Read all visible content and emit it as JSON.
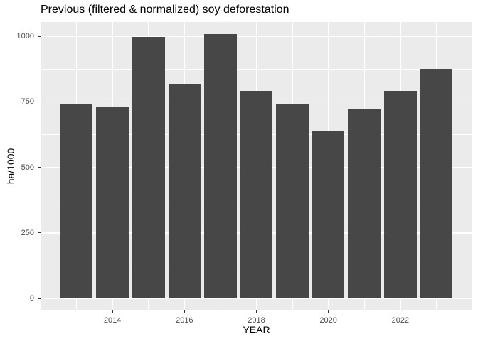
{
  "chart_data": {
    "type": "bar",
    "title": "Previous (filtered & normalized) soy deforestation",
    "xlabel": "YEAR",
    "ylabel": "ha/1000",
    "categories": [
      2013,
      2014,
      2015,
      2016,
      2017,
      2018,
      2019,
      2020,
      2021,
      2022,
      2023
    ],
    "values": [
      740,
      729,
      997,
      818,
      1008,
      792,
      743,
      637,
      724,
      792,
      876
    ],
    "x_major_ticks": [
      2014,
      2016,
      2018,
      2020,
      2022
    ],
    "x_minor_gridlines": [
      2013,
      2015,
      2017,
      2019,
      2021,
      2023
    ],
    "y_major_ticks": [
      0,
      250,
      500,
      750,
      1000
    ],
    "y_minor_gridlines": [
      125,
      375,
      625,
      875
    ],
    "x_domain": [
      2012,
      2024
    ],
    "y_domain": [
      -46,
      1055
    ],
    "bar_width_years": 0.9,
    "baseline_value": 0,
    "grid": true,
    "legend": false,
    "colors": {
      "bar_fill": "#474747",
      "panel_bg": "#EBEBEB",
      "gridline": "#FFFFFF",
      "tick_mark": "#333333",
      "tick_label": "#4D4D4D",
      "title_text": "#000000",
      "figure_bg": "#FFFFFF"
    }
  }
}
